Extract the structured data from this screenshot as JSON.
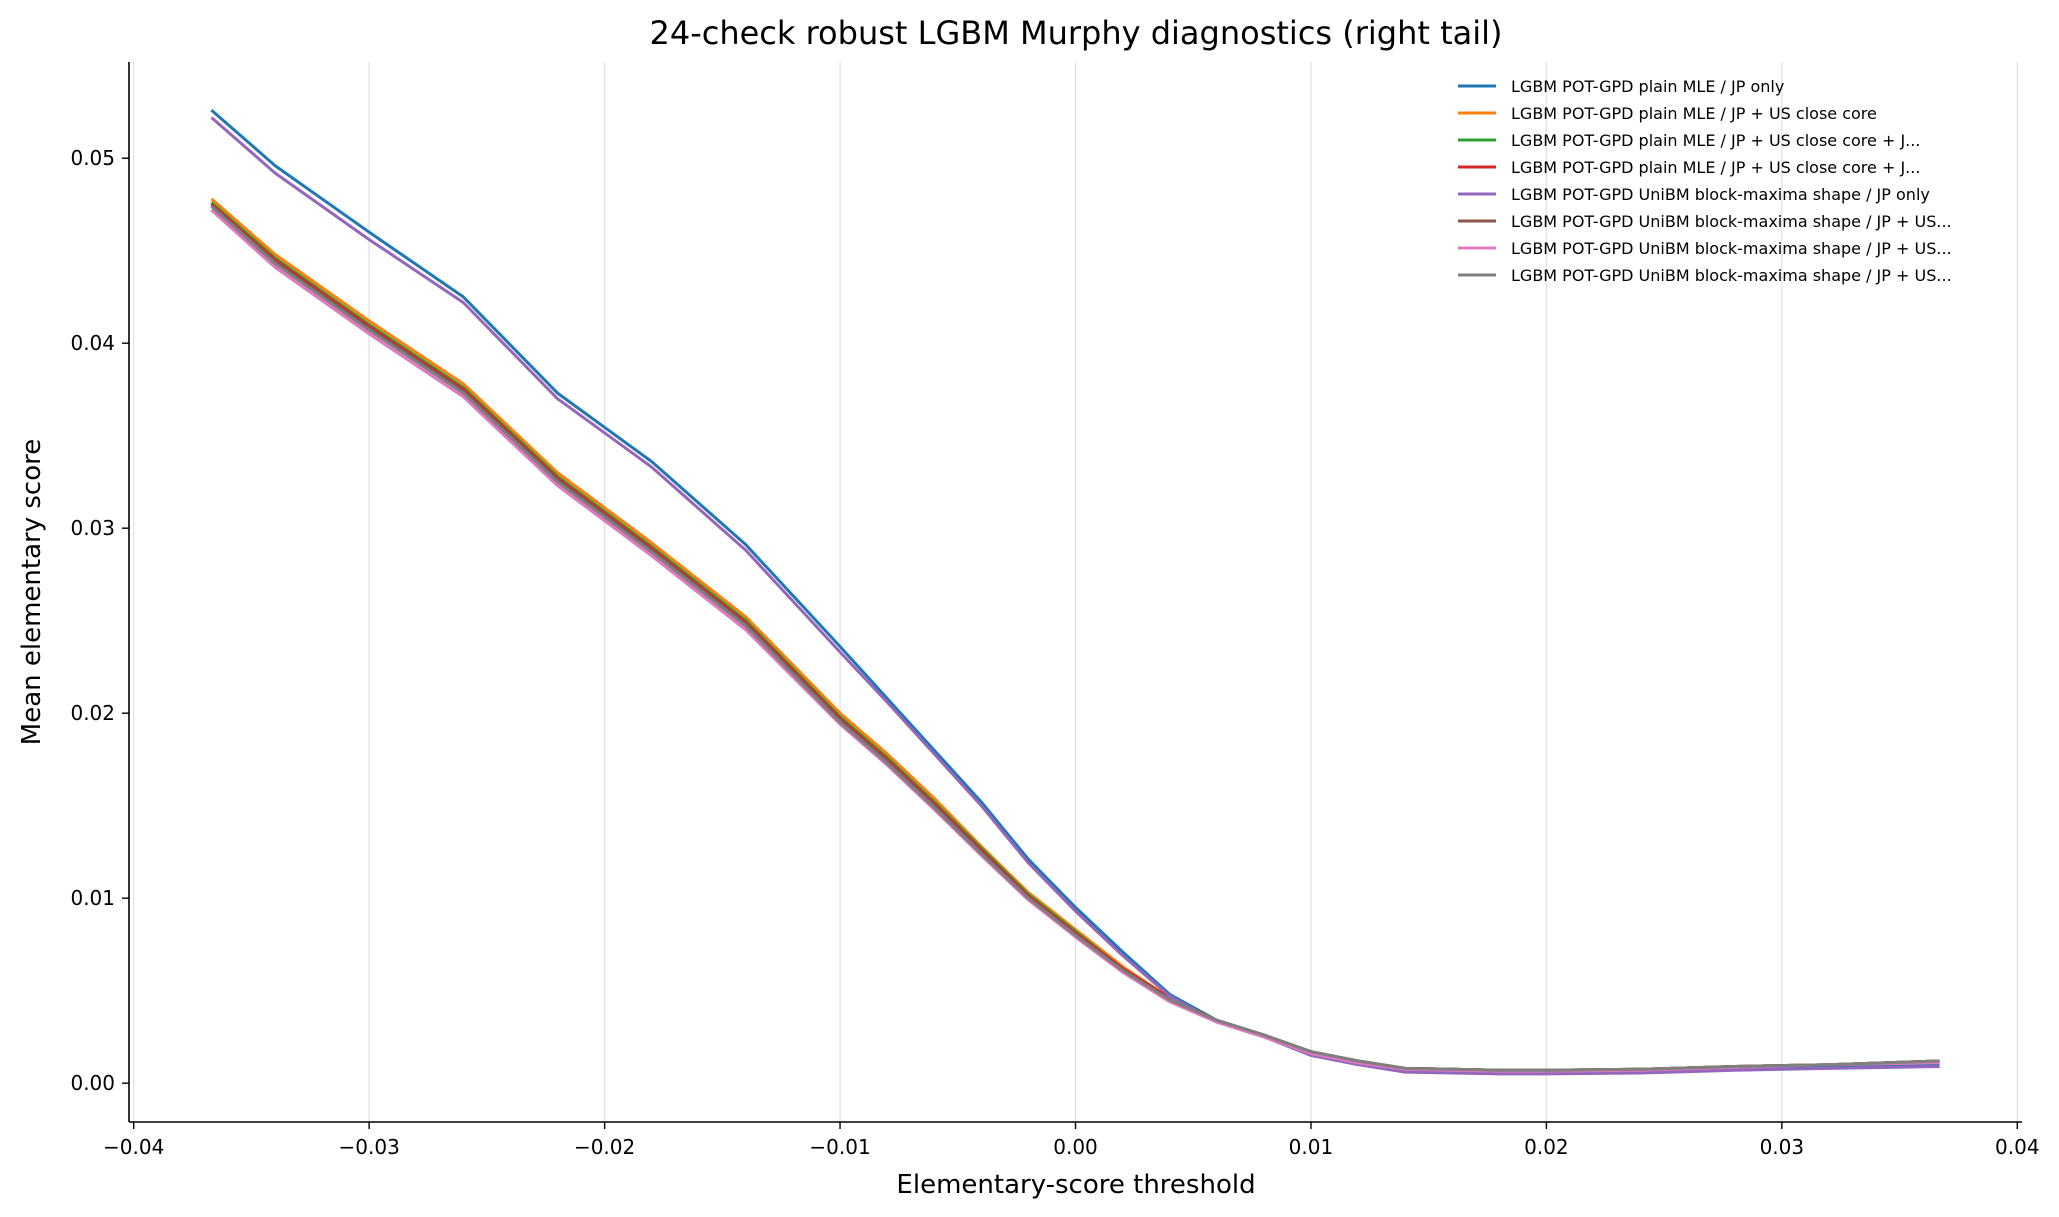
{
  "chart_data": {
    "type": "line",
    "title": "24-check robust LGBM Murphy diagnostics (right tail)",
    "xlabel": "Elementary-score threshold",
    "ylabel": "Mean elementary score",
    "xlim": [
      -0.0402,
      0.0402
    ],
    "ylim": [
      -0.0021,
      0.0552
    ],
    "x_ticks": [
      -0.04,
      -0.03,
      -0.02,
      -0.01,
      0.0,
      0.01,
      0.02,
      0.03,
      0.04
    ],
    "x_tick_labels": [
      "−0.04",
      "−0.03",
      "−0.02",
      "−0.01",
      "0.00",
      "0.01",
      "0.02",
      "0.03",
      "0.04"
    ],
    "y_ticks": [
      0.0,
      0.01,
      0.02,
      0.03,
      0.04,
      0.05
    ],
    "y_tick_labels": [
      "0.00",
      "0.01",
      "0.02",
      "0.03",
      "0.04",
      "0.05"
    ],
    "grid": "x-only",
    "legend_position": "top-right",
    "x": [
      -0.0367,
      -0.034,
      -0.03,
      -0.026,
      -0.022,
      -0.018,
      -0.014,
      -0.01,
      -0.008,
      -0.006,
      -0.004,
      -0.002,
      0.0,
      0.002,
      0.004,
      0.006,
      0.008,
      0.01,
      0.012,
      0.014,
      0.016,
      0.018,
      0.02,
      0.024,
      0.028,
      0.032,
      0.0367
    ],
    "series": [
      {
        "name": "LGBM POT-GPD plain MLE / JP only",
        "color": "#1f77b4",
        "values": [
          0.0526,
          0.0496,
          0.046,
          0.0425,
          0.0373,
          0.0336,
          0.0291,
          0.0236,
          0.0208,
          0.018,
          0.0152,
          0.0121,
          0.0095,
          0.0071,
          0.0048,
          0.0034,
          0.0026,
          0.0016,
          0.0011,
          0.00075,
          0.0007,
          0.00065,
          0.00065,
          0.0007,
          0.0008,
          0.0009,
          0.001
        ]
      },
      {
        "name": "LGBM POT-GPD plain MLE / JP + US close core",
        "color": "#ff7f0e",
        "values": [
          0.0478,
          0.0448,
          0.0412,
          0.0378,
          0.033,
          0.0292,
          0.0252,
          0.02,
          0.0178,
          0.0154,
          0.0128,
          0.0103,
          0.0083,
          0.0063,
          0.0046,
          0.0034,
          0.0026,
          0.0017,
          0.0012,
          0.0008,
          0.00075,
          0.0007,
          0.0007,
          0.00075,
          0.0009,
          0.001,
          0.0012
        ]
      },
      {
        "name": "LGBM POT-GPD plain MLE / JP + US close core + J...",
        "color": "#2ca02c",
        "values": [
          0.0476,
          0.0446,
          0.041,
          0.0376,
          0.0328,
          0.029,
          0.025,
          0.0198,
          0.0176,
          0.0152,
          0.0127,
          0.0102,
          0.0082,
          0.0062,
          0.0046,
          0.0034,
          0.0026,
          0.0017,
          0.0012,
          0.0008,
          0.00075,
          0.0007,
          0.0007,
          0.00075,
          0.0009,
          0.001,
          0.0012
        ]
      },
      {
        "name": "LGBM POT-GPD plain MLE / JP + US close core + J...",
        "color": "#d62728",
        "values": [
          0.0475,
          0.0445,
          0.0409,
          0.0375,
          0.0327,
          0.0289,
          0.0249,
          0.0197,
          0.0175,
          0.0151,
          0.0126,
          0.0101,
          0.0081,
          0.0062,
          0.0046,
          0.0034,
          0.0026,
          0.0017,
          0.0012,
          0.0008,
          0.00075,
          0.0007,
          0.0007,
          0.00075,
          0.0009,
          0.001,
          0.0012
        ]
      },
      {
        "name": "LGBM POT-GPD UniBM block-maxima shape / JP only",
        "color": "#9467bd",
        "values": [
          0.0522,
          0.0492,
          0.0456,
          0.0422,
          0.037,
          0.0333,
          0.0288,
          0.0233,
          0.0206,
          0.0178,
          0.015,
          0.0119,
          0.0093,
          0.0069,
          0.0047,
          0.0033,
          0.0025,
          0.0015,
          0.001,
          0.0006,
          0.00055,
          0.0005,
          0.0005,
          0.00055,
          0.0007,
          0.0008,
          0.0009
        ]
      },
      {
        "name": "LGBM POT-GPD UniBM block-maxima shape / JP + US...",
        "color": "#8c564b",
        "values": [
          0.0474,
          0.0444,
          0.0408,
          0.0374,
          0.0326,
          0.0288,
          0.0248,
          0.0196,
          0.0174,
          0.015,
          0.0125,
          0.01,
          0.008,
          0.0061,
          0.0045,
          0.0034,
          0.0026,
          0.0017,
          0.0012,
          0.0008,
          0.00075,
          0.0007,
          0.0007,
          0.00075,
          0.0009,
          0.001,
          0.0012
        ]
      },
      {
        "name": "LGBM POT-GPD UniBM block-maxima shape / JP + US...",
        "color": "#e377c2",
        "values": [
          0.0472,
          0.0441,
          0.0405,
          0.0371,
          0.0323,
          0.0285,
          0.0245,
          0.0194,
          0.0172,
          0.0148,
          0.0123,
          0.0099,
          0.0079,
          0.006,
          0.0044,
          0.0033,
          0.0025,
          0.0016,
          0.0011,
          0.00075,
          0.0007,
          0.00065,
          0.00065,
          0.0007,
          0.00085,
          0.001,
          0.0011
        ]
      },
      {
        "name": "LGBM POT-GPD UniBM block-maxima shape / JP + US...",
        "color": "#7f7f7f",
        "values": [
          0.0474,
          0.0443,
          0.0407,
          0.0373,
          0.0325,
          0.0287,
          0.0247,
          0.0195,
          0.0173,
          0.0149,
          0.0124,
          0.01,
          0.008,
          0.0061,
          0.0045,
          0.0034,
          0.0026,
          0.0017,
          0.0012,
          0.0008,
          0.00075,
          0.0007,
          0.0007,
          0.00075,
          0.0009,
          0.001,
          0.0012
        ]
      }
    ]
  }
}
